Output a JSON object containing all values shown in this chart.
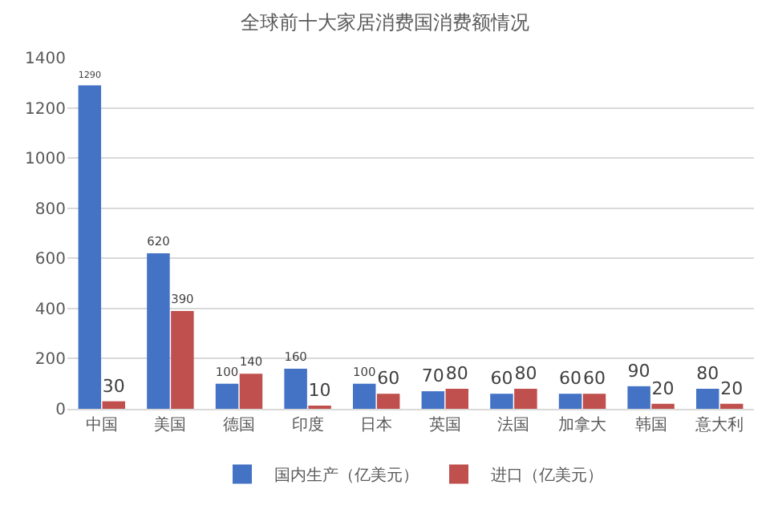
{
  "chart_data": {
    "type": "bar",
    "title": "全球前十大家居消费国消费额情况",
    "categories": [
      "中国",
      "美国",
      "德国",
      "印度",
      "日本",
      "英国",
      "法国",
      "加拿大",
      "韩国",
      "意大利"
    ],
    "series": [
      {
        "name": "国内生产（亿美元）",
        "color": "#4472c4",
        "values": [
          1290,
          620,
          100,
          160,
          100,
          70,
          60,
          60,
          90,
          80
        ]
      },
      {
        "name": "进口（亿美元）",
        "color": "#c0504d",
        "values": [
          30,
          390,
          140,
          10,
          60,
          80,
          80,
          60,
          20,
          20
        ]
      }
    ],
    "ylim": [
      0,
      1400
    ],
    "yticks": [
      0,
      200,
      400,
      600,
      800,
      1000,
      1200,
      1400
    ],
    "grid": "y",
    "legend": "bottom",
    "data_labels": true
  }
}
